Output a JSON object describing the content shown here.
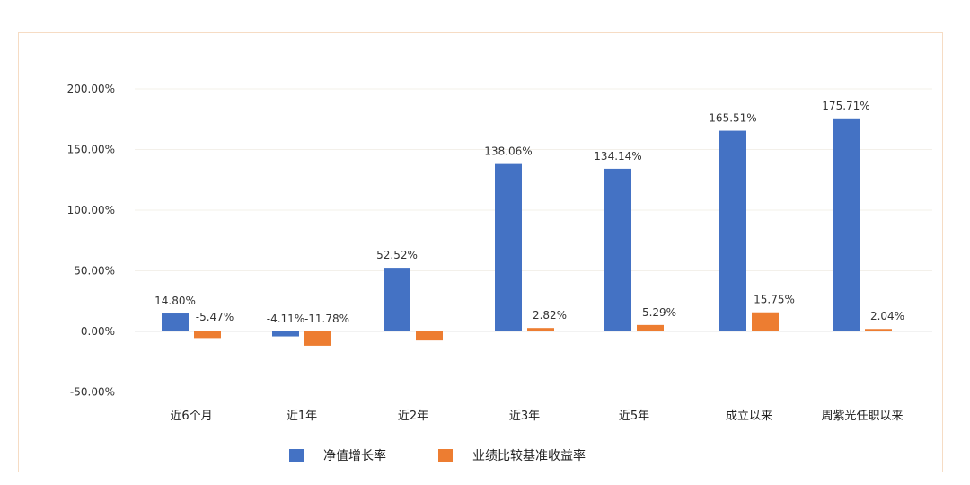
{
  "chart_data": {
    "type": "bar",
    "categories": [
      "近6个月",
      "近1年",
      "近2年",
      "近3年",
      "近5年",
      "成立以来",
      "周紫光任职以来"
    ],
    "series": [
      {
        "name": "净值增长率",
        "color": "#4472c4",
        "values": [
          14.8,
          -4.11,
          52.52,
          138.06,
          134.14,
          165.51,
          175.71
        ],
        "labels": [
          "14.80%",
          "-4.11%",
          "52.52%",
          "138.06%",
          "134.14%",
          "165.51%",
          "175.71%"
        ]
      },
      {
        "name": "业绩比较基准收益率",
        "color": "#ed7d31",
        "values": [
          -5.47,
          -11.78,
          -7.5,
          2.82,
          5.29,
          15.75,
          2.04
        ],
        "labels": [
          "-5.47%",
          "-11.78%",
          "",
          "2.82%",
          "5.29%",
          "15.75%",
          "2.04%"
        ]
      }
    ],
    "yticks": [
      200,
      150,
      100,
      50,
      0,
      -50
    ],
    "ytick_labels": [
      "200.00%",
      "150.00%",
      "100.00%",
      "50.00%",
      "0.00%",
      "-50.00%"
    ],
    "ylim": [
      -50,
      200
    ],
    "grid": true,
    "legend_position": "bottom"
  }
}
